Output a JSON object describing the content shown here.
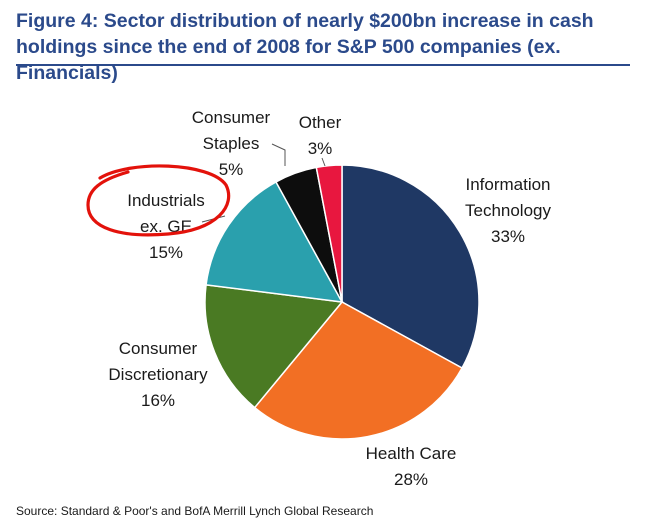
{
  "figure": {
    "title": "Figure 4: Sector distribution of nearly $200bn increase in cash holdings since the end of 2008 for S&P 500 companies (ex. Financials)",
    "source": "Source: Standard & Poor's and BofA Merrill Lynch Global Research"
  },
  "chart_data": {
    "type": "pie",
    "title": "Sector distribution of nearly $200bn increase in cash holdings since the end of 2008 for S&P 500 companies (ex. Financials)",
    "start": "12 o'clock, clockwise",
    "slices": [
      {
        "key": "information-technology",
        "label_lines": [
          "Information",
          "Technology"
        ],
        "value": 33,
        "value_label": "33%",
        "color": "#1f3864"
      },
      {
        "key": "health-care",
        "label_lines": [
          "Health Care"
        ],
        "value": 28,
        "value_label": "28%",
        "color": "#f26f24"
      },
      {
        "key": "consumer-discretionary",
        "label_lines": [
          "Consumer",
          "Discretionary"
        ],
        "value": 16,
        "value_label": "16%",
        "color": "#4a7a23"
      },
      {
        "key": "industrials-ex-ge",
        "label_lines": [
          "Industrials",
          "ex. GE"
        ],
        "value": 15,
        "value_label": "15%",
        "color": "#2aa0ad"
      },
      {
        "key": "consumer-staples",
        "label_lines": [
          "Consumer",
          "Staples"
        ],
        "value": 5,
        "value_label": "5%",
        "color": "#0d0d0d"
      },
      {
        "key": "other",
        "label_lines": [
          "Other"
        ],
        "value": 3,
        "value_label": "3%",
        "color": "#e8173f"
      }
    ],
    "annotation": {
      "type": "hand-drawn circle",
      "target": "industrials-ex-ge",
      "color": "#e3120b"
    }
  }
}
